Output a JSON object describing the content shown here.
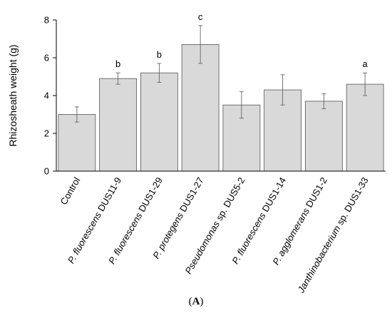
{
  "chart_data": {
    "type": "bar",
    "ylabel": "Rhizosheath weight (g)",
    "ylim": [
      0,
      8
    ],
    "yticks": [
      0,
      2,
      4,
      6,
      8
    ],
    "grid": false,
    "bar_color": "#d9d9d9",
    "categories": [
      {
        "segments": [
          {
            "text": "Control",
            "italic": false
          }
        ]
      },
      {
        "segments": [
          {
            "text": "P. fluorescens",
            "italic": true
          },
          {
            "text": " DUS11-9",
            "italic": false
          }
        ]
      },
      {
        "segments": [
          {
            "text": "P. fluorescens",
            "italic": true
          },
          {
            "text": " DUS1-29",
            "italic": false
          }
        ]
      },
      {
        "segments": [
          {
            "text": "P. protegens",
            "italic": true
          },
          {
            "text": " DUS1-27",
            "italic": false
          }
        ]
      },
      {
        "segments": [
          {
            "text": "Pseudomonas",
            "italic": true
          },
          {
            "text": " sp. DUS5-2",
            "italic": false
          }
        ]
      },
      {
        "segments": [
          {
            "text": "P. fluorescens",
            "italic": true
          },
          {
            "text": " DUS1-14",
            "italic": false
          }
        ]
      },
      {
        "segments": [
          {
            "text": "P. agglomerans",
            "italic": true
          },
          {
            "text": " DUS1-2",
            "italic": false
          }
        ]
      },
      {
        "segments": [
          {
            "text": "Janthinobacterium",
            "italic": true
          },
          {
            "text": " sp. DUS1-33",
            "italic": false
          }
        ]
      }
    ],
    "values": [
      3.0,
      4.9,
      5.2,
      6.7,
      3.5,
      4.3,
      3.7,
      4.6
    ],
    "errors": [
      0.4,
      0.3,
      0.5,
      1.0,
      0.7,
      0.8,
      0.4,
      0.6
    ],
    "annotations": [
      "",
      "b",
      "b",
      "c",
      "",
      "",
      "",
      "a"
    ]
  },
  "panel_label": {
    "open": "(",
    "letter": "A",
    "close": ")"
  }
}
